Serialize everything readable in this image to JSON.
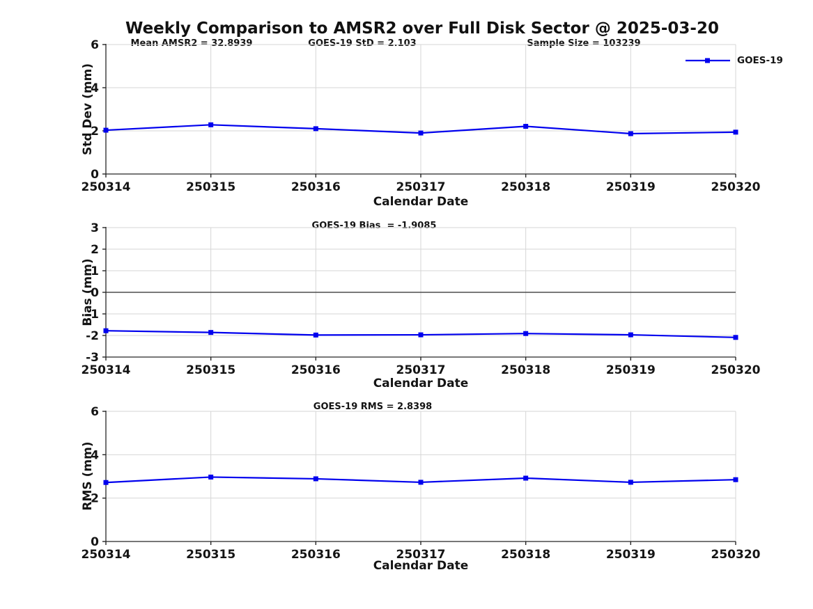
{
  "title": "Weekly Comparison to AMSR2 over Full Disk Sector @ 2025-03-20",
  "legend": {
    "label": "GOES-19"
  },
  "colors": {
    "line": "#0000ee",
    "grid": "#d6d6d6",
    "axis": "#262626",
    "zero_line": "#4d4d4d",
    "text": "#141414"
  },
  "chart_data": [
    {
      "type": "line",
      "name": "std-dev-panel",
      "categories": [
        "250314",
        "250315",
        "250316",
        "250317",
        "250318",
        "250319",
        "250320"
      ],
      "series": [
        {
          "name": "GOES-19",
          "values": [
            2.03,
            2.28,
            2.1,
            1.9,
            2.21,
            1.87,
            1.94
          ]
        }
      ],
      "xlabel": "Calendar Date",
      "ylabel": "Std Dev (mm)",
      "ylim": [
        0,
        6
      ],
      "yticks": [
        0,
        2,
        4,
        6
      ],
      "grid": true,
      "legend_position": "upper-right-outside",
      "annotations": [
        "Mean AMSR2 = 32.8939",
        "GOES-19 StD = 2.103",
        "Sample Size = 103239"
      ]
    },
    {
      "type": "line",
      "name": "bias-panel",
      "categories": [
        "250314",
        "250315",
        "250316",
        "250317",
        "250318",
        "250319",
        "250320"
      ],
      "series": [
        {
          "name": "GOES-19",
          "values": [
            -1.78,
            -1.86,
            -1.98,
            -1.97,
            -1.91,
            -1.97,
            -2.09
          ]
        }
      ],
      "xlabel": "Calendar Date",
      "ylabel": "Bias (mm)",
      "ylim": [
        -3,
        3
      ],
      "yticks": [
        -3,
        -2,
        -1,
        0,
        1,
        2,
        3
      ],
      "grid": true,
      "zero_line": true,
      "annotations": [
        "GOES-19 Bias  = -1.9085"
      ]
    },
    {
      "type": "line",
      "name": "rms-panel",
      "categories": [
        "250314",
        "250315",
        "250316",
        "250317",
        "250318",
        "250319",
        "250320"
      ],
      "series": [
        {
          "name": "GOES-19",
          "values": [
            2.72,
            2.97,
            2.89,
            2.73,
            2.92,
            2.73,
            2.85
          ]
        }
      ],
      "xlabel": "Calendar Date",
      "ylabel": "RMS (mm)",
      "ylim": [
        0,
        6
      ],
      "yticks": [
        0,
        2,
        4,
        6
      ],
      "grid": true,
      "annotations": [
        "GOES-19 RMS = 2.8398"
      ]
    }
  ]
}
